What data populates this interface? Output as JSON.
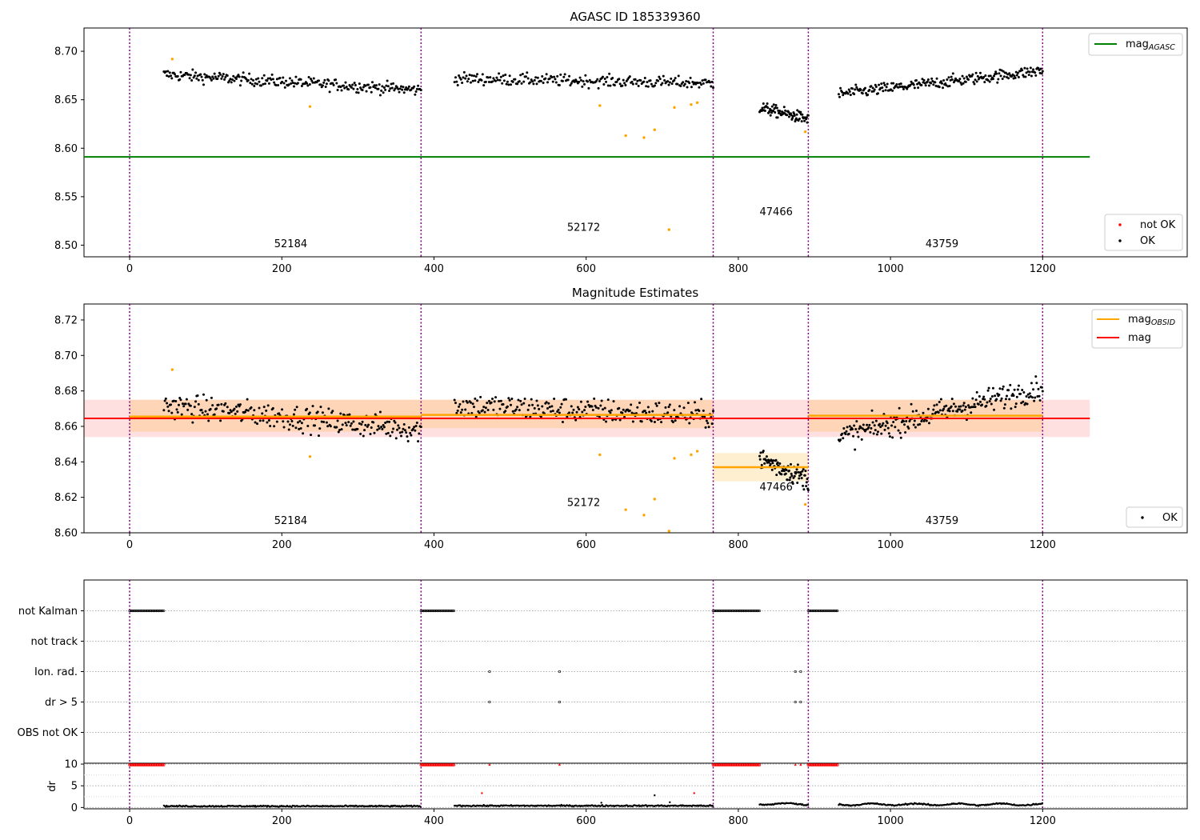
{
  "figure": {
    "panel1_title": "AGASC ID 185339360",
    "panel2_title": "Magnitude Estimates"
  },
  "chart_data": [
    {
      "type": "scatter",
      "title": "AGASC ID 185339360",
      "xlim": [
        -60,
        1390
      ],
      "ylim": [
        8.488,
        8.724
      ],
      "xticks": [
        0,
        200,
        400,
        600,
        800,
        1000,
        1200
      ],
      "yticks": [
        "8.50",
        "8.55",
        "8.60",
        "8.65",
        "8.70"
      ],
      "obs_boundaries": [
        0,
        383,
        767,
        892,
        1200
      ],
      "obsid_labels": [
        {
          "text": "52184",
          "x": 190,
          "y": 8.498
        },
        {
          "text": "52172",
          "x": 575,
          "y": 8.515
        },
        {
          "text": "47466",
          "x": 828,
          "y": 8.531
        },
        {
          "text": "43759",
          "x": 1046,
          "y": 8.498
        }
      ],
      "agasc_mag": {
        "value": 8.591,
        "x_end": 1262,
        "color": "#008000"
      },
      "legend_top": [
        {
          "label": "mag",
          "sub": "AGASC",
          "color": "#008000"
        }
      ],
      "legend_bottom": [
        {
          "label": "not OK",
          "color": "#ff0000"
        },
        {
          "label": "OK",
          "color": "#000000"
        }
      ],
      "series": [
        {
          "name": "OK",
          "segments": [
            {
              "x0": 45,
              "x1": 383,
              "n": 260,
              "y0": 8.676,
              "y1": 8.66,
              "noise": 0.006
            },
            {
              "x0": 427,
              "x1": 767,
              "n": 240,
              "y0": 8.672,
              "y1": 8.667,
              "noise": 0.006
            },
            {
              "x0": 828,
              "x1": 892,
              "n": 90,
              "y0": 8.642,
              "y1": 8.63,
              "noise": 0.006
            },
            {
              "x0": 932,
              "x1": 1200,
              "n": 240,
              "y0": 8.656,
              "y1": 8.68,
              "noise": 0.006
            }
          ]
        },
        {
          "name": "not OK",
          "color": "#ffa500",
          "points": [
            [
              56,
              8.692
            ],
            [
              237,
              8.643
            ],
            [
              618,
              8.644
            ],
            [
              652,
              8.613
            ],
            [
              676,
              8.611
            ],
            [
              690,
              8.619
            ],
            [
              709,
              8.516
            ],
            [
              716,
              8.642
            ],
            [
              738,
              8.645
            ],
            [
              746,
              8.647
            ],
            [
              888,
              8.617
            ]
          ]
        }
      ]
    },
    {
      "type": "scatter",
      "title": "Magnitude Estimates",
      "xlim": [
        -60,
        1390
      ],
      "ylim": [
        8.6,
        8.729
      ],
      "xticks": [
        0,
        200,
        400,
        600,
        800,
        1000,
        1200
      ],
      "yticks": [
        "8.60",
        "8.62",
        "8.64",
        "8.66",
        "8.68",
        "8.70",
        "8.72"
      ],
      "obs_boundaries": [
        0,
        383,
        767,
        892,
        1200
      ],
      "obsid_labels": [
        {
          "text": "52184",
          "x": 190,
          "y": 8.605
        },
        {
          "text": "52172",
          "x": 575,
          "y": 8.615
        },
        {
          "text": "47466",
          "x": 828,
          "y": 8.624
        },
        {
          "text": "43759",
          "x": 1046,
          "y": 8.605
        }
      ],
      "mag": {
        "value": 8.6645,
        "band": [
          8.654,
          8.675
        ],
        "x_end": 1262,
        "color": "#ff0000"
      },
      "mag_obsid": [
        {
          "x0": 0,
          "x1": 383,
          "value": 8.6655,
          "band": [
            8.657,
            8.675
          ]
        },
        {
          "x0": 383,
          "x1": 767,
          "value": 8.6665,
          "band": [
            8.659,
            8.675
          ]
        },
        {
          "x0": 767,
          "x1": 892,
          "value": 8.637,
          "band": [
            8.629,
            8.645
          ]
        },
        {
          "x0": 892,
          "x1": 1200,
          "value": 8.666,
          "band": [
            8.657,
            8.675
          ]
        }
      ],
      "legend_top": [
        {
          "label": "mag",
          "sub": "OBSID",
          "color": "#ffa500"
        },
        {
          "label": "mag",
          "sub": "",
          "color": "#ff0000"
        }
      ],
      "legend_bottom": [
        {
          "label": "OK",
          "color": "#000000"
        }
      ],
      "series": [
        {
          "name": "OK",
          "segments": [
            {
              "x0": 45,
              "x1": 383,
              "n": 260,
              "y0": 8.672,
              "y1": 8.658,
              "noise": 0.007
            },
            {
              "x0": 427,
              "x1": 767,
              "n": 240,
              "y0": 8.672,
              "y1": 8.666,
              "noise": 0.007
            },
            {
              "x0": 828,
              "x1": 892,
              "n": 90,
              "y0": 8.642,
              "y1": 8.63,
              "noise": 0.006
            },
            {
              "x0": 932,
              "x1": 1200,
              "n": 240,
              "y0": 8.654,
              "y1": 8.682,
              "noise": 0.007
            }
          ]
        },
        {
          "name": "not OK",
          "color": "#ffa500",
          "points": [
            [
              56,
              8.692
            ],
            [
              237,
              8.643
            ],
            [
              618,
              8.644
            ],
            [
              652,
              8.613
            ],
            [
              676,
              8.61
            ],
            [
              690,
              8.619
            ],
            [
              709,
              8.601
            ],
            [
              716,
              8.642
            ],
            [
              738,
              8.644
            ],
            [
              746,
              8.646
            ],
            [
              888,
              8.616
            ]
          ]
        }
      ]
    },
    {
      "type": "scatter",
      "xlim": [
        -60,
        1390
      ],
      "flag_rows": [
        "not Kalman",
        "not track",
        "Ion. rad.",
        "dr > 5",
        "OBS not OK"
      ],
      "flag_points": {
        "not Kalman": [
          [
            0,
            45
          ],
          [
            383,
            427
          ],
          [
            767,
            828
          ],
          [
            892,
            932
          ]
        ],
        "not track": [],
        "Ion. rad.": [
          473,
          565,
          875,
          882
        ],
        "dr > 5": [
          473,
          565,
          875,
          882
        ],
        "OBS not OK": []
      },
      "obs_boundaries": [
        0,
        383,
        767,
        892,
        1200
      ],
      "dr": {
        "ylim": [
          -0.3,
          10.2
        ],
        "yticks": [
          "0",
          "5",
          "10"
        ],
        "ylabel": "dr",
        "saturated_value": 10,
        "saturated_ranges": [
          [
            0,
            45
          ],
          [
            383,
            427
          ],
          [
            767,
            828
          ],
          [
            892,
            932
          ]
        ],
        "saturated_points": [
          473,
          565,
          875,
          882
        ],
        "outliers": [
          [
            463,
            3.3
          ],
          [
            742,
            3.3
          ],
          [
            620,
            1.1
          ],
          [
            690,
            2.8
          ],
          [
            710,
            1.2
          ]
        ],
        "baseline_segments": [
          {
            "x0": 45,
            "x1": 383,
            "level": 0.3
          },
          {
            "x0": 427,
            "x1": 767,
            "level": 0.4
          },
          {
            "x0": 828,
            "x1": 892,
            "level": 0.8
          },
          {
            "x0": 932,
            "x1": 1200,
            "level": 0.7
          }
        ]
      },
      "xticks": [
        0,
        200,
        400,
        600,
        800,
        1000,
        1200
      ]
    }
  ]
}
